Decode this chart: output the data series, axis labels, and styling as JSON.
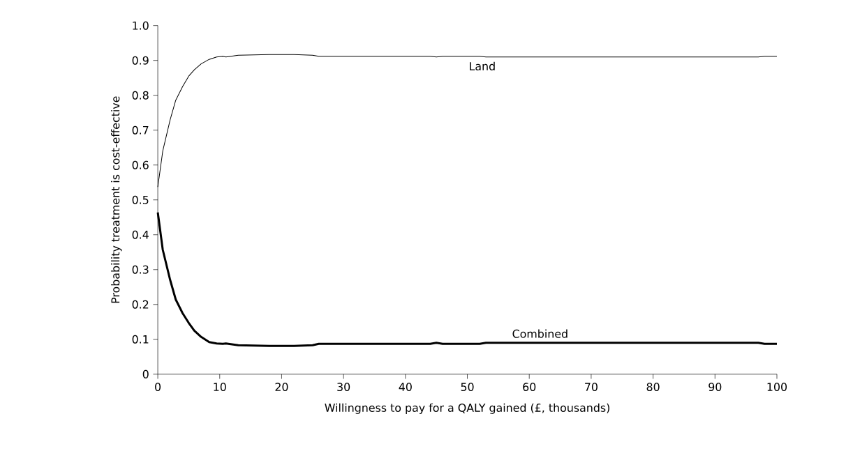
{
  "chart_data": {
    "type": "line",
    "xlabel": "Willingness to pay for a QALY gained (£, thousands)",
    "ylabel": "Probability treatment is cost-effective",
    "xlim": [
      0,
      100
    ],
    "xticks": [
      0,
      10,
      20,
      30,
      40,
      50,
      60,
      70,
      80,
      90,
      100
    ],
    "ylim": [
      0,
      1.0
    ],
    "yticks": [
      0,
      0.1,
      0.2,
      0.3,
      0.4,
      0.5,
      0.6,
      0.7,
      0.8,
      0.9,
      {
        "value": 1.0,
        "label": "1.0"
      }
    ],
    "grid": false,
    "legend": false,
    "marker": "none",
    "line_style": "solid",
    "series": [
      {
        "name": "Land",
        "color": "#000000",
        "x": [
          0,
          0.8,
          2,
          2.9,
          4,
          5,
          5.9,
          7,
          8.3,
          9.5,
          10.5,
          11,
          13,
          18,
          22,
          25,
          26,
          44,
          45,
          46,
          52,
          53,
          97,
          98,
          100
        ],
        "values": [
          0.537,
          0.64,
          0.73,
          0.786,
          0.825,
          0.855,
          0.873,
          0.89,
          0.903,
          0.91,
          0.912,
          0.91,
          0.915,
          0.917,
          0.917,
          0.915,
          0.912,
          0.912,
          0.91,
          0.912,
          0.912,
          0.91,
          0.91,
          0.912,
          0.912
        ]
      },
      {
        "name": "Combined",
        "color": "#000000",
        "x": [
          0,
          0.8,
          2,
          2.9,
          4,
          5,
          5.9,
          7,
          8.3,
          9.5,
          10.5,
          11,
          13,
          18,
          22,
          25,
          26,
          44,
          45,
          46,
          52,
          53,
          97,
          98,
          100
        ],
        "values": [
          0.464,
          0.357,
          0.27,
          0.214,
          0.175,
          0.147,
          0.125,
          0.107,
          0.092,
          0.088,
          0.087,
          0.088,
          0.083,
          0.081,
          0.081,
          0.083,
          0.087,
          0.087,
          0.09,
          0.087,
          0.087,
          0.09,
          0.09,
          0.087,
          0.087
        ]
      }
    ]
  }
}
